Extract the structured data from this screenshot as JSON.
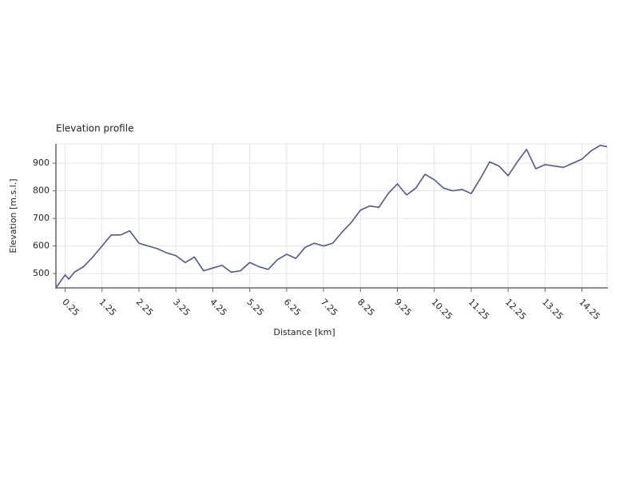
{
  "chart_data": {
    "type": "line",
    "title": "Elevation profile",
    "xlabel": "Distance [km]",
    "ylabel": "Elevation [m.s.l.]",
    "x": [
      0,
      0.25,
      0.35,
      0.5,
      0.75,
      1.0,
      1.25,
      1.5,
      1.75,
      2.0,
      2.25,
      2.5,
      2.75,
      3.0,
      3.25,
      3.5,
      3.75,
      4.0,
      4.25,
      4.5,
      4.75,
      5.0,
      5.25,
      5.5,
      5.75,
      6.0,
      6.25,
      6.5,
      6.75,
      7.0,
      7.25,
      7.5,
      7.75,
      8.0,
      8.25,
      8.5,
      8.75,
      9.0,
      9.25,
      9.5,
      9.75,
      10.0,
      10.25,
      10.5,
      10.75,
      11.0,
      11.25,
      11.5,
      11.75,
      12.0,
      12.25,
      12.5,
      12.75,
      13.0,
      13.25,
      13.5,
      13.75,
      14.0,
      14.25,
      14.5,
      14.75,
      14.93
    ],
    "series": [
      {
        "name": "Elevation",
        "color": "#55558f",
        "values": [
          448,
          495,
          480,
          505,
          525,
          560,
          600,
          640,
          640,
          655,
          610,
          600,
          590,
          575,
          565,
          540,
          560,
          510,
          520,
          530,
          505,
          510,
          540,
          525,
          515,
          550,
          570,
          555,
          595,
          610,
          600,
          610,
          650,
          685,
          730,
          745,
          740,
          790,
          825,
          785,
          810,
          860,
          840,
          810,
          800,
          805,
          790,
          845,
          905,
          890,
          855,
          905,
          950,
          880,
          895,
          890,
          885,
          900,
          915,
          945,
          965,
          960
        ]
      }
    ],
    "xlim": [
      0,
      14.93
    ],
    "ylim": [
      448,
      970
    ],
    "xticks": [
      0.25,
      1.25,
      2.25,
      3.25,
      4.25,
      5.25,
      6.25,
      7.25,
      8.25,
      9.25,
      10.25,
      11.25,
      12.25,
      13.25,
      14.25
    ],
    "yticks": [
      500,
      600,
      700,
      800,
      900
    ],
    "grid": true
  }
}
